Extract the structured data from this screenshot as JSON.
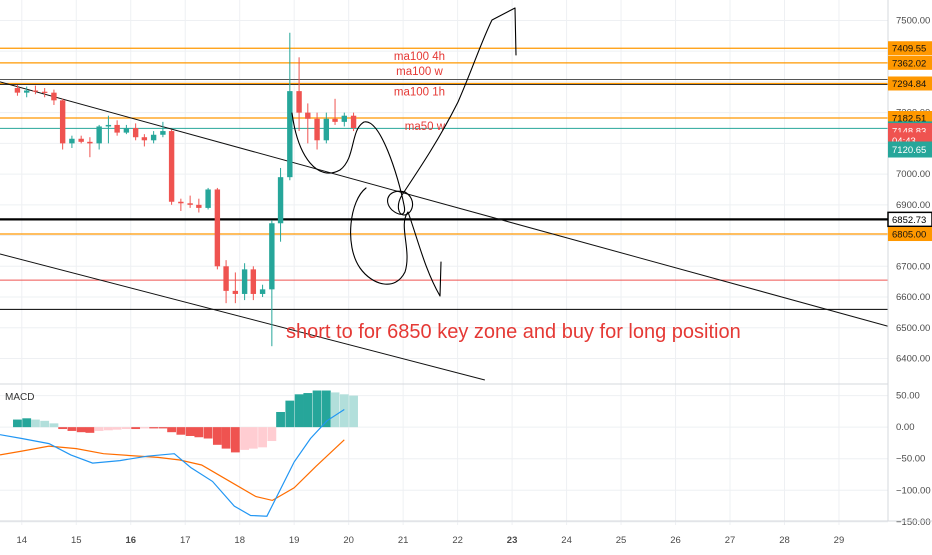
{
  "colors": {
    "up": "#26a69a",
    "down": "#ef5350",
    "macd_up_strong": "#26a69a",
    "macd_up_weak": "#b2dfdb",
    "macd_down_strong": "#ef5350",
    "macd_down_weak": "#ffcdd2",
    "macd_line": "#2196f3",
    "signal_line": "#ff6d00",
    "level_orange": "#ff9800",
    "level_black": "#000000",
    "level_teal": "#26a69a",
    "level_red": "#ef5350",
    "annotation_red": "#e53935",
    "drawing": "#000000",
    "grid": "#eef0f3"
  },
  "chart_data": [
    {
      "type": "candlestick",
      "pane": "price",
      "x_axis": {
        "unit": "day",
        "range": [
          13.6,
          29.9
        ],
        "tick_labels": [
          "14",
          "15",
          "16",
          "17",
          "18",
          "19",
          "20",
          "21",
          "22",
          "23",
          "24",
          "25",
          "26",
          "27",
          "28",
          "29"
        ]
      },
      "y_axis": {
        "range": [
          6330,
          7560
        ],
        "tick_labels": [
          "7500.00",
          "7400.00",
          "7300.00",
          "7200.00",
          "7100.00",
          "7000.00",
          "6900.00",
          "6800.00",
          "6700.00",
          "6600.00",
          "6500.00",
          "6400.00"
        ]
      },
      "grid": true,
      "candles_4h": [
        {
          "t": 13.92,
          "o": 7280,
          "h": 7290,
          "l": 7255,
          "c": 7265
        },
        {
          "t": 14.09,
          "o": 7265,
          "h": 7285,
          "l": 7250,
          "c": 7272
        },
        {
          "t": 14.25,
          "o": 7272,
          "h": 7288,
          "l": 7260,
          "c": 7268
        },
        {
          "t": 14.42,
          "o": 7268,
          "h": 7280,
          "l": 7250,
          "c": 7265
        },
        {
          "t": 14.59,
          "o": 7265,
          "h": 7275,
          "l": 7225,
          "c": 7240
        },
        {
          "t": 14.75,
          "o": 7240,
          "h": 7245,
          "l": 7080,
          "c": 7100
        },
        {
          "t": 14.92,
          "o": 7100,
          "h": 7125,
          "l": 7085,
          "c": 7115
        },
        {
          "t": 15.09,
          "o": 7115,
          "h": 7125,
          "l": 7100,
          "c": 7105
        },
        {
          "t": 15.25,
          "o": 7105,
          "h": 7120,
          "l": 7055,
          "c": 7100
        },
        {
          "t": 15.42,
          "o": 7100,
          "h": 7160,
          "l": 7080,
          "c": 7155
        },
        {
          "t": 15.59,
          "o": 7155,
          "h": 7190,
          "l": 7100,
          "c": 7160
        },
        {
          "t": 15.75,
          "o": 7160,
          "h": 7175,
          "l": 7125,
          "c": 7135
        },
        {
          "t": 15.92,
          "o": 7135,
          "h": 7160,
          "l": 7130,
          "c": 7150
        },
        {
          "t": 16.09,
          "o": 7150,
          "h": 7165,
          "l": 7110,
          "c": 7120
        },
        {
          "t": 16.25,
          "o": 7120,
          "h": 7130,
          "l": 7090,
          "c": 7110
        },
        {
          "t": 16.42,
          "o": 7110,
          "h": 7140,
          "l": 7100,
          "c": 7128
        },
        {
          "t": 16.59,
          "o": 7128,
          "h": 7170,
          "l": 7120,
          "c": 7140
        },
        {
          "t": 16.75,
          "o": 7140,
          "h": 7145,
          "l": 6900,
          "c": 6910
        },
        {
          "t": 16.92,
          "o": 6910,
          "h": 6920,
          "l": 6880,
          "c": 6905
        },
        {
          "t": 17.09,
          "o": 6905,
          "h": 6930,
          "l": 6890,
          "c": 6900
        },
        {
          "t": 17.25,
          "o": 6900,
          "h": 6920,
          "l": 6875,
          "c": 6890
        },
        {
          "t": 17.42,
          "o": 6890,
          "h": 6955,
          "l": 6885,
          "c": 6950
        },
        {
          "t": 17.59,
          "o": 6950,
          "h": 6955,
          "l": 6690,
          "c": 6700
        },
        {
          "t": 17.75,
          "o": 6700,
          "h": 6720,
          "l": 6580,
          "c": 6620
        },
        {
          "t": 17.92,
          "o": 6620,
          "h": 6680,
          "l": 6580,
          "c": 6610
        },
        {
          "t": 18.09,
          "o": 6610,
          "h": 6710,
          "l": 6590,
          "c": 6690
        },
        {
          "t": 18.25,
          "o": 6690,
          "h": 6700,
          "l": 6590,
          "c": 6610
        },
        {
          "t": 18.42,
          "o": 6610,
          "h": 6640,
          "l": 6600,
          "c": 6625
        },
        {
          "t": 18.59,
          "o": 6625,
          "h": 6850,
          "l": 6440,
          "c": 6840
        },
        {
          "t": 18.75,
          "o": 6840,
          "h": 7020,
          "l": 6780,
          "c": 6990
        },
        {
          "t": 18.92,
          "o": 6990,
          "h": 7460,
          "l": 6980,
          "c": 7270
        },
        {
          "t": 19.09,
          "o": 7270,
          "h": 7380,
          "l": 7140,
          "c": 7200
        },
        {
          "t": 19.25,
          "o": 7200,
          "h": 7230,
          "l": 7100,
          "c": 7180
        },
        {
          "t": 19.42,
          "o": 7180,
          "h": 7200,
          "l": 7080,
          "c": 7110
        },
        {
          "t": 19.59,
          "o": 7110,
          "h": 7200,
          "l": 7100,
          "c": 7180
        },
        {
          "t": 19.75,
          "o": 7180,
          "h": 7245,
          "l": 7160,
          "c": 7170
        },
        {
          "t": 19.92,
          "o": 7170,
          "h": 7200,
          "l": 7155,
          "c": 7190
        },
        {
          "t": 20.09,
          "o": 7190,
          "h": 7200,
          "l": 7140,
          "c": 7150
        }
      ],
      "horizontal_levels": [
        {
          "price": 7409.55,
          "label": "7409.55",
          "kind": "orange"
        },
        {
          "price": 7362.02,
          "label": "7362.02",
          "kind": "orange"
        },
        {
          "price": 7294.84,
          "label": "7294.84",
          "kind": "orange_double"
        },
        {
          "price": 7182.51,
          "label": "7182.51",
          "kind": "orange"
        },
        {
          "price": 7148.83,
          "label": "7148.83",
          "kind": "teal"
        },
        {
          "price": 6852.73,
          "label": "6852.73",
          "kind": "black_thick"
        },
        {
          "price": 6805.0,
          "label": "6805.00",
          "kind": "orange"
        },
        {
          "price": 6655,
          "label": "",
          "kind": "red"
        },
        {
          "price": 6560,
          "label": "",
          "kind": "black"
        }
      ],
      "price_labels": [
        {
          "price": 7140.0,
          "label": "7148.83",
          "kind": "red_tag"
        },
        {
          "price": 7110.0,
          "label": "04:43",
          "kind": "red_tag"
        },
        {
          "price": 7080.0,
          "label": "7120.65",
          "kind": "teal_tag"
        }
      ],
      "trendlines": [
        {
          "from": [
            13.6,
            7300
          ],
          "to": [
            29.9,
            6505
          ]
        },
        {
          "from": [
            13.6,
            6740
          ],
          "to": [
            22.5,
            6330
          ]
        }
      ],
      "level_annotations": [
        {
          "text": "ma100 4h",
          "price": 7409.55,
          "day": 21.3
        },
        {
          "text": "ma100 w",
          "price": 7362.02,
          "day": 21.3
        },
        {
          "text": "ma100 1h",
          "price": 7294.84,
          "day": 21.3
        },
        {
          "text": "ma50 w",
          "price": 7182.51,
          "day": 21.4
        }
      ],
      "note": "short to  for 6850 key zone and  buy for long position"
    },
    {
      "type": "histogram+lines",
      "pane": "macd",
      "title": "MACD",
      "y_axis": {
        "range": [
          -155,
          62
        ],
        "tick_labels": [
          "50.00",
          "0.00",
          "−50.00",
          "−100.00",
          "−150.00"
        ]
      },
      "histogram": [
        {
          "t": 13.92,
          "v": 12
        },
        {
          "t": 14.09,
          "v": 14
        },
        {
          "t": 14.25,
          "v": 12
        },
        {
          "t": 14.42,
          "v": 10
        },
        {
          "t": 14.59,
          "v": 6
        },
        {
          "t": 14.75,
          "v": -3
        },
        {
          "t": 14.92,
          "v": -6
        },
        {
          "t": 15.09,
          "v": -8
        },
        {
          "t": 15.25,
          "v": -9
        },
        {
          "t": 15.42,
          "v": -6
        },
        {
          "t": 15.59,
          "v": -5
        },
        {
          "t": 15.75,
          "v": -4
        },
        {
          "t": 15.92,
          "v": -3
        },
        {
          "t": 16.09,
          "v": -3
        },
        {
          "t": 16.25,
          "v": -2
        },
        {
          "t": 16.42,
          "v": -2
        },
        {
          "t": 16.59,
          "v": -2
        },
        {
          "t": 16.75,
          "v": -8
        },
        {
          "t": 16.92,
          "v": -12
        },
        {
          "t": 17.09,
          "v": -14
        },
        {
          "t": 17.25,
          "v": -16
        },
        {
          "t": 17.42,
          "v": -18
        },
        {
          "t": 17.59,
          "v": -28
        },
        {
          "t": 17.75,
          "v": -34
        },
        {
          "t": 17.92,
          "v": -40
        },
        {
          "t": 18.09,
          "v": -36
        },
        {
          "t": 18.25,
          "v": -34
        },
        {
          "t": 18.42,
          "v": -32
        },
        {
          "t": 18.59,
          "v": -22
        },
        {
          "t": 18.75,
          "v": 24
        },
        {
          "t": 18.92,
          "v": 42
        },
        {
          "t": 19.09,
          "v": 52
        },
        {
          "t": 19.25,
          "v": 54
        },
        {
          "t": 19.42,
          "v": 58
        },
        {
          "t": 19.59,
          "v": 58
        },
        {
          "t": 19.75,
          "v": 55
        },
        {
          "t": 19.92,
          "v": 52
        },
        {
          "t": 20.09,
          "v": 50
        }
      ],
      "macd_line": [
        {
          "t": 13.6,
          "v": -12
        },
        {
          "t": 14.0,
          "v": -18
        },
        {
          "t": 14.5,
          "v": -26
        },
        {
          "t": 14.9,
          "v": -44
        },
        {
          "t": 15.3,
          "v": -57
        },
        {
          "t": 15.8,
          "v": -53
        },
        {
          "t": 16.3,
          "v": -46
        },
        {
          "t": 16.8,
          "v": -42
        },
        {
          "t": 17.1,
          "v": -64
        },
        {
          "t": 17.5,
          "v": -86
        },
        {
          "t": 17.9,
          "v": -125
        },
        {
          "t": 18.2,
          "v": -140
        },
        {
          "t": 18.5,
          "v": -141
        },
        {
          "t": 18.75,
          "v": -98
        },
        {
          "t": 19.0,
          "v": -55
        },
        {
          "t": 19.3,
          "v": -18
        },
        {
          "t": 19.6,
          "v": 10
        },
        {
          "t": 19.92,
          "v": 28
        }
      ],
      "signal_line": [
        {
          "t": 13.6,
          "v": -44
        },
        {
          "t": 14.0,
          "v": -38
        },
        {
          "t": 14.5,
          "v": -30
        },
        {
          "t": 15.0,
          "v": -34
        },
        {
          "t": 15.5,
          "v": -42
        },
        {
          "t": 16.0,
          "v": -45
        },
        {
          "t": 16.5,
          "v": -48
        },
        {
          "t": 16.9,
          "v": -52
        },
        {
          "t": 17.3,
          "v": -60
        },
        {
          "t": 17.8,
          "v": -85
        },
        {
          "t": 18.3,
          "v": -110
        },
        {
          "t": 18.6,
          "v": -116
        },
        {
          "t": 19.0,
          "v": -96
        },
        {
          "t": 19.4,
          "v": -62
        },
        {
          "t": 19.92,
          "v": -20
        }
      ]
    }
  ]
}
